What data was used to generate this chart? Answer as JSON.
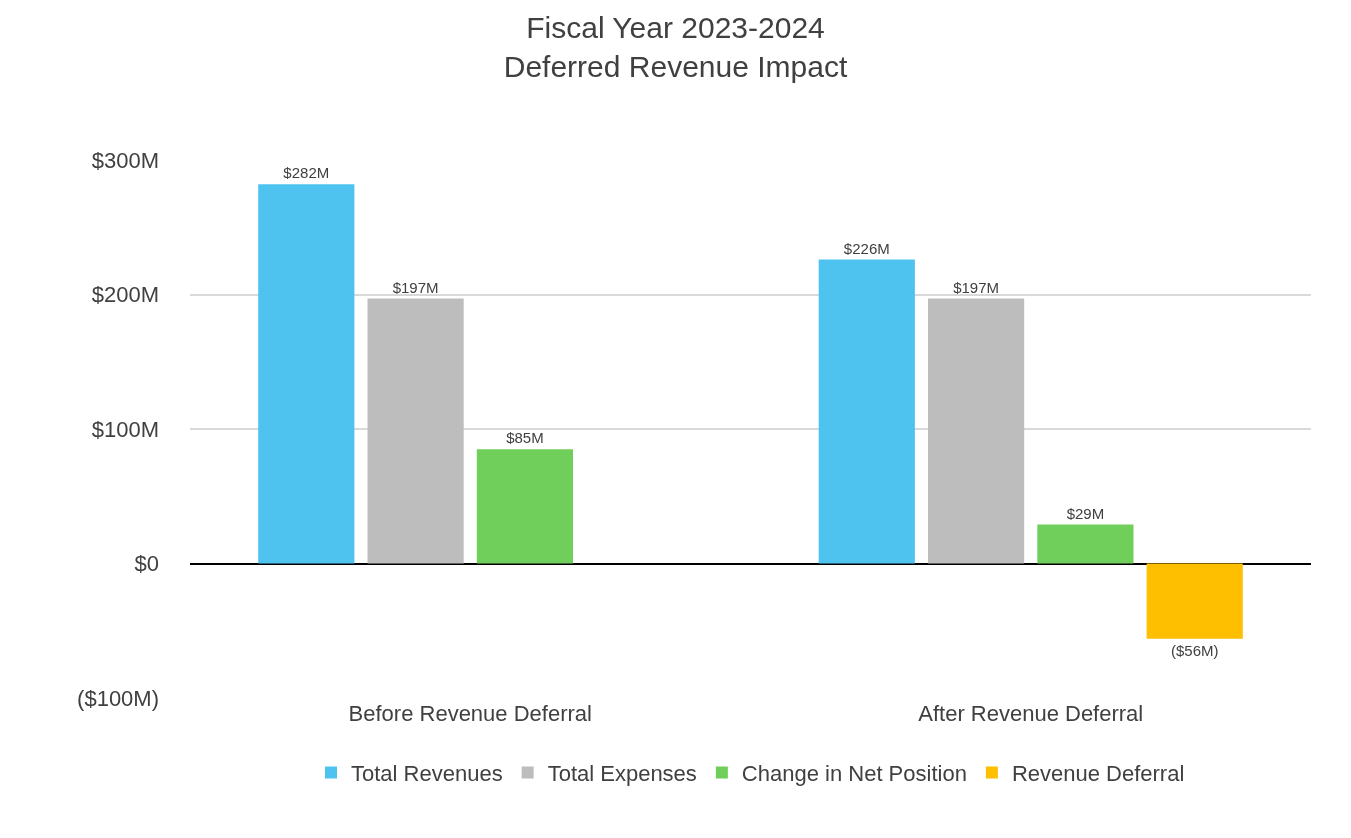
{
  "chart_data": {
    "type": "bar",
    "title": "Fiscal Year 2023-2024\nDeferred Revenue Impact",
    "categories": [
      "Before Revenue Deferral",
      "After Revenue Deferral"
    ],
    "series": [
      {
        "name": "Total Revenues",
        "color": "#4fc3f0",
        "values": [
          282,
          226
        ],
        "value_labels": [
          "$282M",
          "$226M"
        ]
      },
      {
        "name": "Total Expenses",
        "color": "#bdbdbd",
        "values": [
          197,
          197
        ],
        "value_labels": [
          "$197M",
          "$197M"
        ]
      },
      {
        "name": "Change in Net Position",
        "color": "#6fcf5a",
        "values": [
          85,
          29
        ],
        "value_labels": [
          "$85M",
          "$29M"
        ]
      },
      {
        "name": "Revenue Deferral",
        "color": "#fdbf00",
        "values": [
          null,
          -56
        ],
        "value_labels": [
          null,
          "($56M)"
        ]
      }
    ],
    "ylim": [
      -100,
      300
    ],
    "yticks": [
      {
        "value": -100,
        "label": "($100M)"
      },
      {
        "value": 0,
        "label": "$0"
      },
      {
        "value": 100,
        "label": "$100M"
      },
      {
        "value": 200,
        "label": "$200M"
      },
      {
        "value": 300,
        "label": "$300M"
      }
    ],
    "grid": "y",
    "legend": "bottom"
  }
}
